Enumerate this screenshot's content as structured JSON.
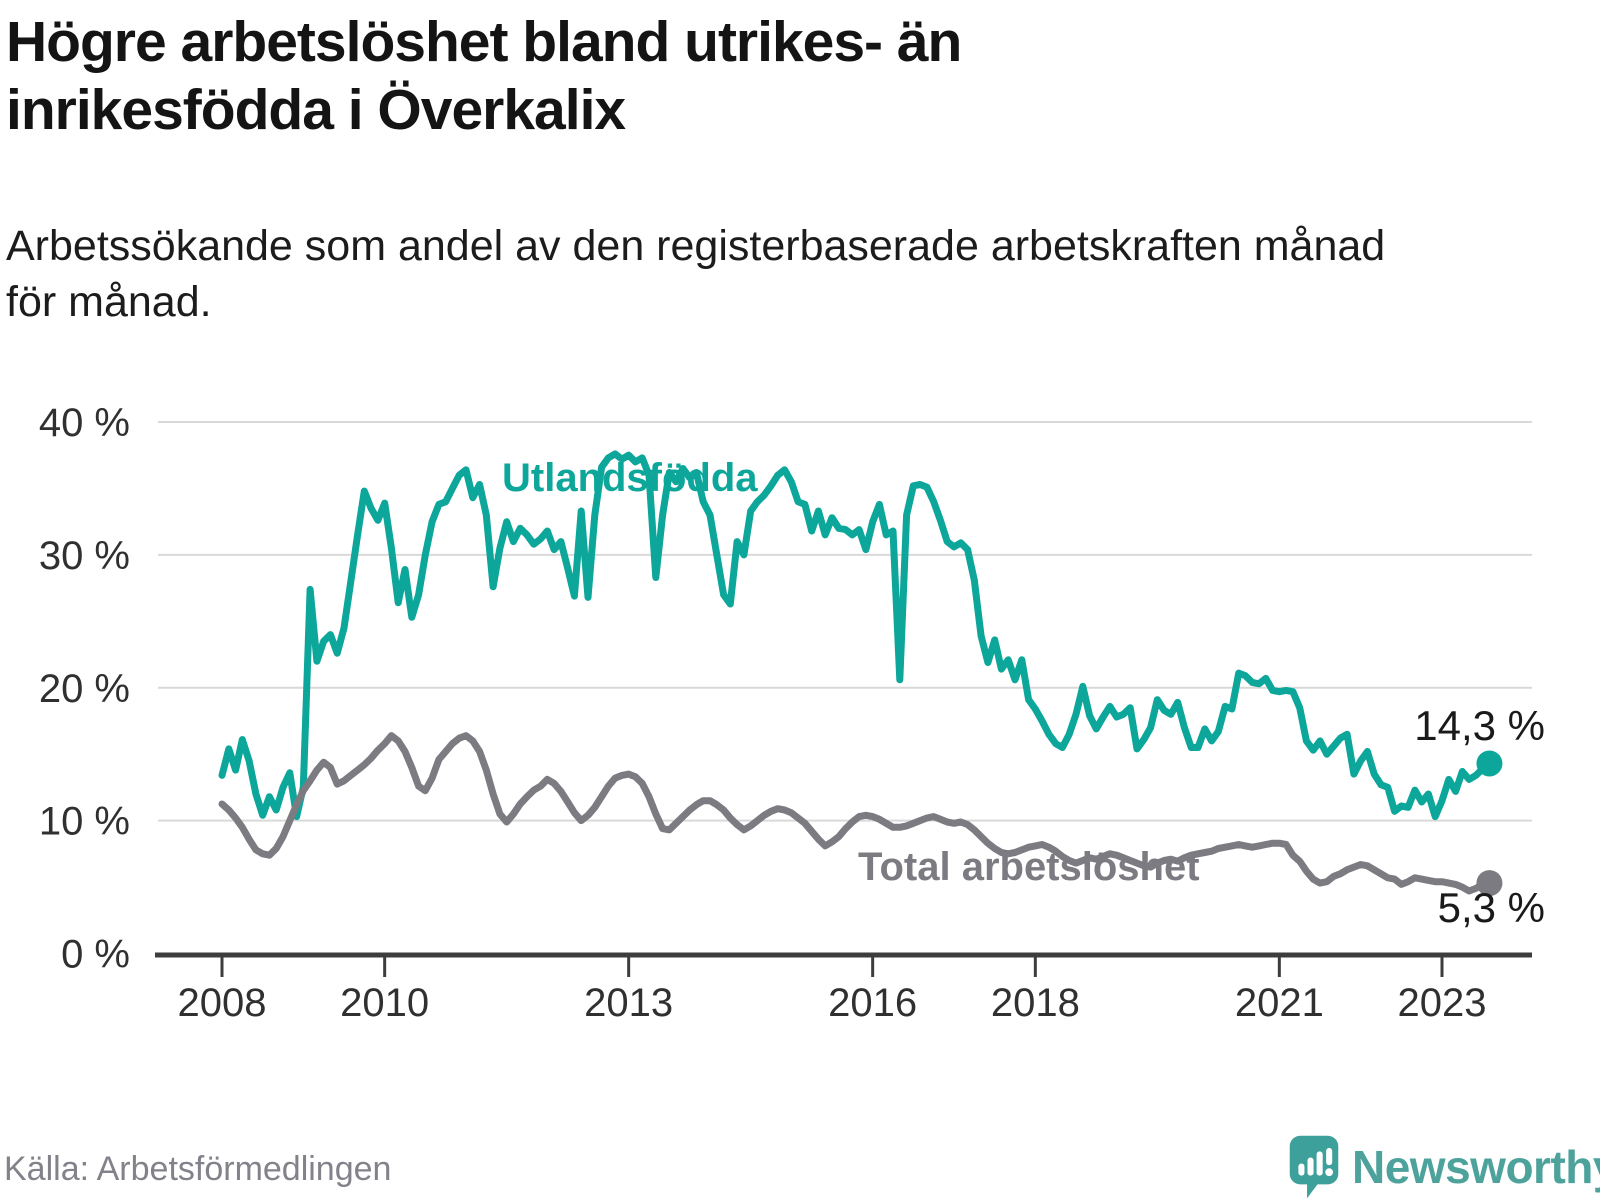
{
  "header": {
    "title_line1": "Högre arbetslöshet bland utrikes- än",
    "title_line2": "inrikesfödda i Överkalix",
    "subtitle_line1": "Arbetssökande som andel av den registerbaserade arbetskraften månad",
    "subtitle_line2": "för månad."
  },
  "footer": {
    "source": "Källa: Arbetsförmedlingen",
    "logo_text": "Newsworthy",
    "logo_icon": "bar-chart-speech-bubble-icon"
  },
  "colors": {
    "series_foreign": "#0ca69a",
    "series_total": "#7c7b81",
    "axis": "#3d3d3d",
    "gridline": "#d9d9d9",
    "tick_text": "#303030",
    "end_label_text": "#1a1a1a"
  },
  "chart_data": {
    "type": "line",
    "title": "Högre arbetslöshet bland utrikes- än inrikesfödda i Överkalix",
    "subtitle": "Arbetssökande som andel av den registerbaserade arbetskraften månad för månad.",
    "source": "Källa: Arbetsförmedlingen",
    "grid": "horizontal",
    "ylim": [
      0,
      40
    ],
    "x_start_year": 2008,
    "x_step_months": 1,
    "x_end_label_years": 2023.583,
    "y_axis": {
      "ticks": [
        {
          "label": "40 %",
          "value": 40
        },
        {
          "label": "30 %",
          "value": 30
        },
        {
          "label": "20 %",
          "value": 20
        },
        {
          "label": "10 %",
          "value": 10
        },
        {
          "label": "0 %",
          "value": 0
        }
      ]
    },
    "x_axis": {
      "ticks": [
        {
          "label": "2008",
          "year": 2008
        },
        {
          "label": "2010",
          "year": 2010
        },
        {
          "label": "2013",
          "year": 2013
        },
        {
          "label": "2016",
          "year": 2016
        },
        {
          "label": "2018",
          "year": 2018
        },
        {
          "label": "2021",
          "year": 2021
        },
        {
          "label": "2023",
          "year": 2023
        }
      ]
    },
    "series": [
      {
        "name": "Utlandsfödda",
        "color": "#0ca69a",
        "end_value_label": "14,3 %",
        "values": [
          13.4,
          15.4,
          13.8,
          16.1,
          14.5,
          12.0,
          10.4,
          11.8,
          10.8,
          12.5,
          13.6,
          10.3,
          12.5,
          27.4,
          22.0,
          23.5,
          24.0,
          22.6,
          24.5,
          28.0,
          31.5,
          34.8,
          33.5,
          32.6,
          33.9,
          30.5,
          26.4,
          28.9,
          25.3,
          27.0,
          30.0,
          32.5,
          33.8,
          34.0,
          35.0,
          36.0,
          36.4,
          34.3,
          35.3,
          33.0,
          27.6,
          30.5,
          32.5,
          31.0,
          32.0,
          31.5,
          30.8,
          31.2,
          31.8,
          30.4,
          31.0,
          29.0,
          26.9,
          33.3,
          26.8,
          33.0,
          36.6,
          37.3,
          37.6,
          37.2,
          37.5,
          37.0,
          37.3,
          36.0,
          28.3,
          33.0,
          36.2,
          35.5,
          36.5,
          35.8,
          36.2,
          34.0,
          33.0,
          30.0,
          27.0,
          26.3,
          31.0,
          30.0,
          33.3,
          34.0,
          34.5,
          35.2,
          36.0,
          36.4,
          35.5,
          34.0,
          33.8,
          31.8,
          33.3,
          31.5,
          32.8,
          32.0,
          31.9,
          31.5,
          31.9,
          30.4,
          32.5,
          33.8,
          31.5,
          31.8,
          20.6,
          33.0,
          35.2,
          35.3,
          35.1,
          34.0,
          32.6,
          31.0,
          30.6,
          30.9,
          30.4,
          28.1,
          23.9,
          21.9,
          23.6,
          21.4,
          22.1,
          20.6,
          22.1,
          19.1,
          18.4,
          17.5,
          16.5,
          15.8,
          15.5,
          16.5,
          18.0,
          20.1,
          17.9,
          16.9,
          17.8,
          18.6,
          17.8,
          18.0,
          18.5,
          15.4,
          16.1,
          17.0,
          19.1,
          18.3,
          18.0,
          18.9,
          17.0,
          15.5,
          15.5,
          16.9,
          16.0,
          16.7,
          18.6,
          18.4,
          21.1,
          20.9,
          20.4,
          20.3,
          20.7,
          19.8,
          19.7,
          19.8,
          19.7,
          18.5,
          16.0,
          15.3,
          16.0,
          15.0,
          15.6,
          16.2,
          16.5,
          13.5,
          14.5,
          15.2,
          13.5,
          12.7,
          12.5,
          10.7,
          11.1,
          11.0,
          12.3,
          11.4,
          12.0,
          10.3,
          11.5,
          13.1,
          12.2,
          13.7,
          13.1,
          13.4,
          13.9,
          14.3
        ]
      },
      {
        "name": "Total arbetslöshet",
        "color": "#7c7b81",
        "end_value_label": "5,3 %",
        "values": [
          11.25,
          10.8,
          10.2,
          9.5,
          8.6,
          7.8,
          7.5,
          7.4,
          7.9,
          8.8,
          10.0,
          11.2,
          12.25,
          13.0,
          13.8,
          14.4,
          14.0,
          12.75,
          13.0,
          13.4,
          13.8,
          14.2,
          14.7,
          15.3,
          15.8,
          16.4,
          16.0,
          15.2,
          14.0,
          12.6,
          12.25,
          13.2,
          14.6,
          15.2,
          15.8,
          16.2,
          16.4,
          16.0,
          15.2,
          13.8,
          12.0,
          10.5,
          9.9,
          10.5,
          11.25,
          11.8,
          12.3,
          12.6,
          13.1,
          12.8,
          12.2,
          11.4,
          10.6,
          10.0,
          10.4,
          11.0,
          11.8,
          12.6,
          13.2,
          13.4,
          13.5,
          13.3,
          12.8,
          11.8,
          10.5,
          9.4,
          9.3,
          9.8,
          10.3,
          10.8,
          11.2,
          11.5,
          11.5,
          11.2,
          10.8,
          10.2,
          9.7,
          9.3,
          9.6,
          10.0,
          10.4,
          10.7,
          10.9,
          10.8,
          10.6,
          10.2,
          9.8,
          9.2,
          8.6,
          8.1,
          8.4,
          8.8,
          9.4,
          9.9,
          10.3,
          10.4,
          10.3,
          10.1,
          9.8,
          9.5,
          9.5,
          9.6,
          9.8,
          10.0,
          10.2,
          10.3,
          10.1,
          9.9,
          9.8,
          9.9,
          9.7,
          9.3,
          8.8,
          8.3,
          7.9,
          7.6,
          7.5,
          7.6,
          7.8,
          8.0,
          8.1,
          8.2,
          8.0,
          7.7,
          7.3,
          7.0,
          6.8,
          7.0,
          7.2,
          7.1,
          7.3,
          7.5,
          7.4,
          7.2,
          7.0,
          6.8,
          6.6,
          6.5,
          6.8,
          7.0,
          7.1,
          6.95,
          7.2,
          7.4,
          7.5,
          7.6,
          7.7,
          7.9,
          8.0,
          8.1,
          8.2,
          8.1,
          8.0,
          8.1,
          8.2,
          8.3,
          8.3,
          8.2,
          7.4,
          6.95,
          6.2,
          5.6,
          5.3,
          5.4,
          5.8,
          6.0,
          6.3,
          6.5,
          6.7,
          6.6,
          6.3,
          6.0,
          5.7,
          5.6,
          5.2,
          5.4,
          5.7,
          5.6,
          5.5,
          5.4,
          5.4,
          5.3,
          5.2,
          5.0,
          4.7,
          4.9,
          5.2,
          5.3
        ]
      }
    ]
  }
}
